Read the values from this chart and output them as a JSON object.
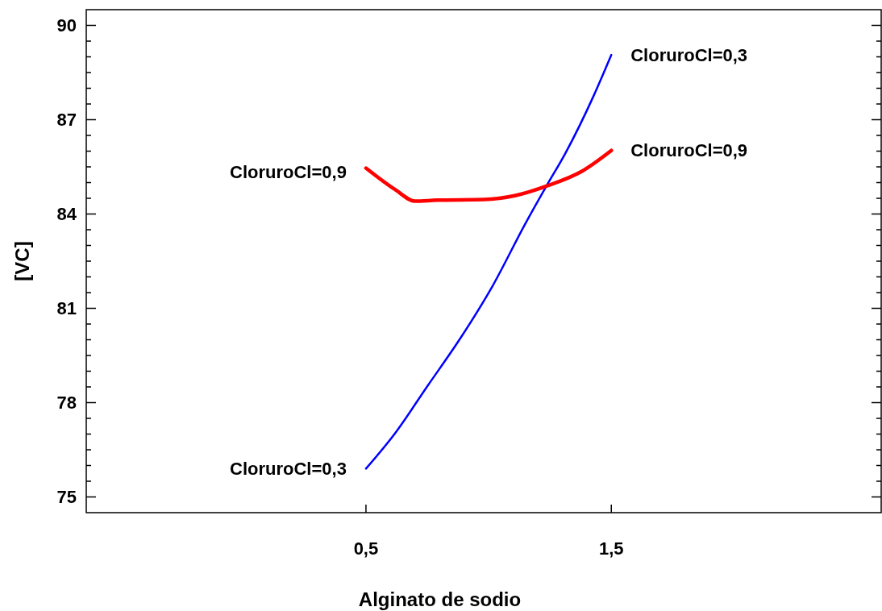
{
  "chart_data": {
    "type": "line",
    "xlabel": "Alginato de sodio",
    "ylabel": "[VC]",
    "xlim": [
      -0.64,
      2.6
    ],
    "ylim": [
      74.5,
      90.5
    ],
    "xticks": [
      {
        "value": 0.5,
        "label": "0,5"
      },
      {
        "value": 1.5,
        "label": "1,5"
      }
    ],
    "yticks": [
      75,
      {
        "value": 75.5,
        "label": null
      },
      {
        "value": 76,
        "label": null
      },
      {
        "value": 76.5,
        "label": null
      },
      {
        "value": 77,
        "label": null
      },
      {
        "value": 77.5,
        "label": null
      },
      78,
      {
        "value": 78.5,
        "label": null
      },
      {
        "value": 79,
        "label": null
      },
      {
        "value": 79.5,
        "label": null
      },
      {
        "value": 80,
        "label": null
      },
      {
        "value": 80.5,
        "label": null
      },
      81,
      {
        "value": 81.5,
        "label": null
      },
      {
        "value": 82,
        "label": null
      },
      {
        "value": 82.5,
        "label": null
      },
      {
        "value": 83,
        "label": null
      },
      {
        "value": 83.5,
        "label": null
      },
      84,
      {
        "value": 84.5,
        "label": null
      },
      {
        "value": 85,
        "label": null
      },
      {
        "value": 85.5,
        "label": null
      },
      {
        "value": 86,
        "label": null
      },
      {
        "value": 86.5,
        "label": null
      },
      87,
      {
        "value": 87.5,
        "label": null
      },
      {
        "value": 88,
        "label": null
      },
      {
        "value": 88.5,
        "label": null
      },
      {
        "value": 89,
        "label": null
      },
      {
        "value": 89.5,
        "label": null
      },
      90
    ],
    "grid": false,
    "marker": "none",
    "line_style": "solid",
    "series": [
      {
        "name": "CloruroCl=0,3",
        "color": "#0000ff",
        "x": [
          0.5,
          0.62,
          0.75,
          0.885,
          1.016,
          1.148,
          1.234,
          1.312,
          1.428,
          1.5
        ],
        "values": [
          75.9,
          77.04,
          78.52,
          80.05,
          81.71,
          83.67,
          84.87,
          85.92,
          87.76,
          89.06
        ]
      },
      {
        "name": "CloruroCl=0,9",
        "color": "#ff0000",
        "x": [
          0.5,
          0.62,
          0.7,
          0.79,
          0.98,
          1.11,
          1.24,
          1.38,
          1.5
        ],
        "values": [
          85.46,
          84.77,
          84.41,
          84.44,
          84.46,
          84.59,
          84.9,
          85.36,
          86.02
        ]
      }
    ]
  }
}
